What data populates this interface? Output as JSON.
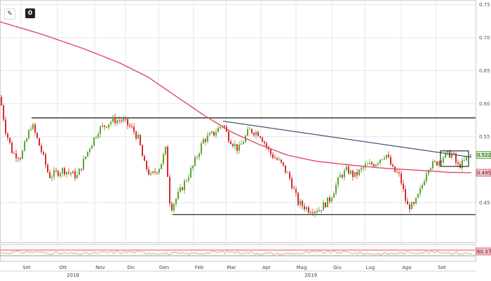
{
  "toolbar": {
    "edit_icon": "pencil-icon",
    "zero_label": "0"
  },
  "chart_data": {
    "type": "candlestick",
    "price_axis": {
      "ylim": [
        0.39,
        0.757
      ],
      "ticks": [
        "0.75",
        "0.70",
        "0.65",
        "0.60",
        "0.55",
        "0.45"
      ]
    },
    "months": [
      "Set",
      "Ott",
      "Nov",
      "Dic",
      "Gen",
      "Feb",
      "Mar",
      "Apr",
      "Mag",
      "Giu",
      "Lug",
      "Ago",
      "Set"
    ],
    "years": [
      "2018",
      "2019"
    ],
    "ohlc_close_keyframes": [
      [
        0,
        0.61
      ],
      [
        8,
        0.56
      ],
      [
        18,
        0.525
      ],
      [
        30,
        0.52
      ],
      [
        45,
        0.57
      ],
      [
        60,
        0.525
      ],
      [
        70,
        0.49
      ],
      [
        90,
        0.5
      ],
      [
        110,
        0.49
      ],
      [
        128,
        0.535
      ],
      [
        140,
        0.56
      ],
      [
        160,
        0.575
      ],
      [
        175,
        0.575
      ],
      [
        190,
        0.56
      ],
      [
        198,
        0.545
      ],
      [
        205,
        0.51
      ],
      [
        215,
        0.49
      ],
      [
        228,
        0.505
      ],
      [
        236,
        0.53
      ],
      [
        240,
        0.48
      ],
      [
        243,
        0.44
      ],
      [
        248,
        0.45
      ],
      [
        258,
        0.47
      ],
      [
        275,
        0.505
      ],
      [
        290,
        0.545
      ],
      [
        305,
        0.555
      ],
      [
        318,
        0.57
      ],
      [
        325,
        0.55
      ],
      [
        340,
        0.53
      ],
      [
        355,
        0.56
      ],
      [
        370,
        0.555
      ],
      [
        385,
        0.525
      ],
      [
        400,
        0.51
      ],
      [
        412,
        0.49
      ],
      [
        425,
        0.45
      ],
      [
        440,
        0.44
      ],
      [
        455,
        0.44
      ],
      [
        470,
        0.455
      ],
      [
        485,
        0.49
      ],
      [
        495,
        0.5
      ],
      [
        505,
        0.49
      ],
      [
        520,
        0.505
      ],
      [
        535,
        0.51
      ],
      [
        550,
        0.525
      ],
      [
        560,
        0.5
      ],
      [
        570,
        0.49
      ],
      [
        580,
        0.445
      ],
      [
        590,
        0.445
      ],
      [
        600,
        0.47
      ],
      [
        610,
        0.505
      ],
      [
        622,
        0.51
      ],
      [
        632,
        0.52
      ],
      [
        645,
        0.525
      ],
      [
        652,
        0.505
      ],
      [
        660,
        0.51
      ],
      [
        668,
        0.52
      ],
      [
        672,
        0.5224
      ]
    ],
    "moving_average_keyframes": [
      [
        0,
        0.724
      ],
      [
        60,
        0.705
      ],
      [
        120,
        0.683
      ],
      [
        170,
        0.662
      ],
      [
        210,
        0.641
      ],
      [
        250,
        0.612
      ],
      [
        290,
        0.583
      ],
      [
        330,
        0.557
      ],
      [
        370,
        0.538
      ],
      [
        410,
        0.522
      ],
      [
        450,
        0.513
      ],
      [
        500,
        0.507
      ],
      [
        550,
        0.502
      ],
      [
        600,
        0.499
      ],
      [
        640,
        0.496
      ],
      [
        672,
        0.4954
      ]
    ],
    "last_price": "0.5224",
    "moving_average_last": "0.4954",
    "levels": {
      "resistance": 0.5785,
      "support": 0.432
    },
    "trendline": [
      [
        318,
        0.5735
      ],
      [
        672,
        0.519
      ]
    ],
    "range_box": {
      "x0": 628,
      "x1": 668,
      "top": 0.5285,
      "bottom": 0.505
    },
    "oscillator": {
      "last_value": "60.3702",
      "upper_band": 70,
      "lower_band": 30
    }
  },
  "colors": {
    "up": "#5aa630",
    "down": "#d42b2b",
    "ma": "#e8475f",
    "trend": "#3c5878",
    "level": "#2a2a2a",
    "grid": "#e6e6e6",
    "osc": "#e6939c"
  }
}
